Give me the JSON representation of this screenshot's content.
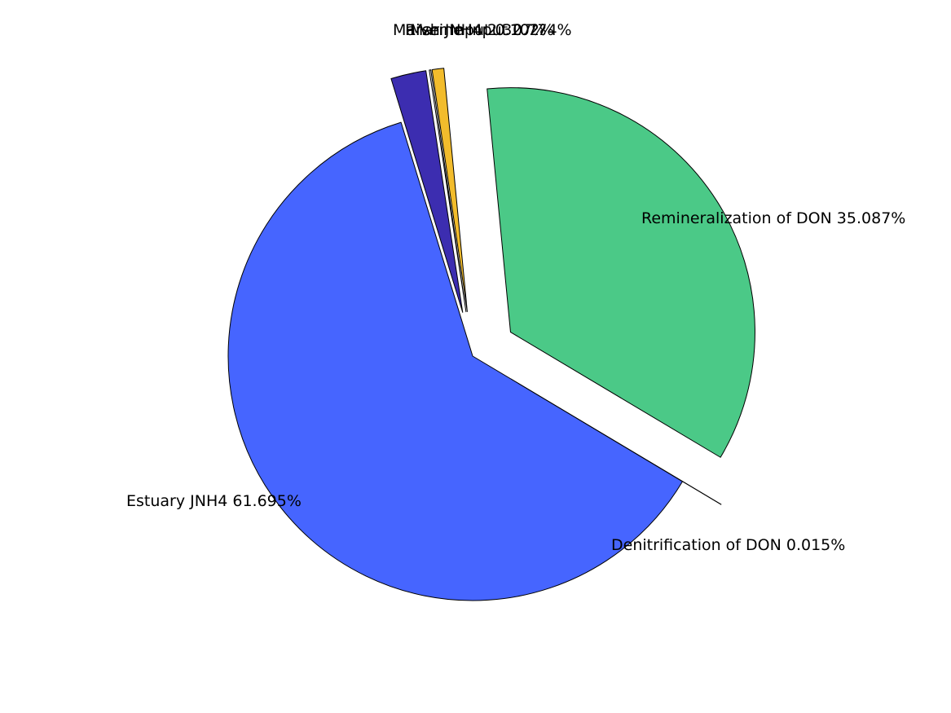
{
  "chart_data": {
    "type": "pie",
    "title": "",
    "legend": "none",
    "slices": [
      {
        "label": "Remineralization of DON 35.087%",
        "name": "Remineralization of DON",
        "value": 35.087,
        "color": "#4bc987",
        "exploded": true
      },
      {
        "label": "Denitrification of DON 0.015%",
        "name": "Denitrification of DON",
        "value": 0.015,
        "color": "#2bb07a",
        "exploded": true
      },
      {
        "label": "Estuary JNH4 61.695%",
        "name": "Estuary JNH4",
        "value": 61.695,
        "color": "#4665ff",
        "exploded": false
      },
      {
        "label": "Marsh JNH4 2.327%",
        "name": "Marsh JNH4",
        "value": 2.327,
        "color": "#3c2db0",
        "exploded": true
      },
      {
        "label": "River Input 0.102%",
        "name": "River Input",
        "value": 0.102,
        "color": "#d9d9d9",
        "exploded": true
      },
      {
        "label": "Marine Input 0.774%",
        "name": "Marine Input",
        "value": 0.774,
        "color": "#f2bc2c",
        "exploded": true
      }
    ]
  }
}
